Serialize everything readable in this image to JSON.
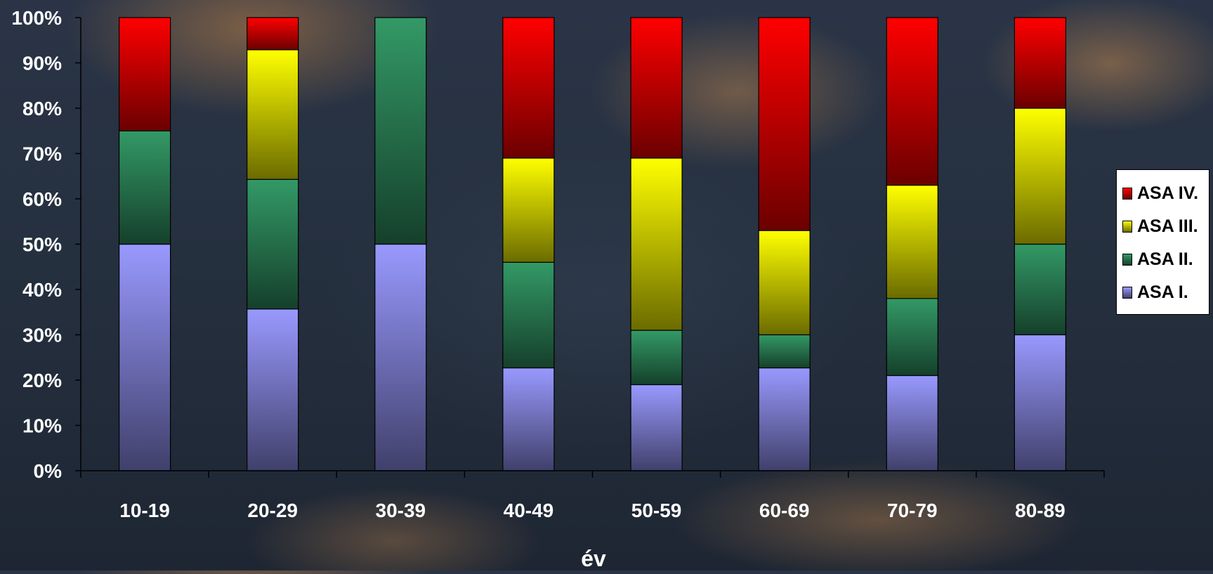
{
  "chart_data": {
    "type": "bar",
    "stacked": "percent",
    "categories": [
      "10-19",
      "20-29",
      "30-39",
      "40-49",
      "50-59",
      "60-69",
      "70-79",
      "80-89"
    ],
    "series": [
      {
        "name": "ASA I.",
        "color": "#9999ff",
        "values": [
          50,
          35.7,
          50,
          22.7,
          19,
          22.7,
          21,
          30
        ]
      },
      {
        "name": "ASA II.",
        "color": "#339966",
        "values": [
          25,
          28.6,
          50,
          23.3,
          12,
          7.3,
          17,
          20
        ]
      },
      {
        "name": "ASA III.",
        "color": "#ffff00",
        "values": [
          0,
          28.6,
          0,
          23,
          38,
          23,
          25,
          30
        ]
      },
      {
        "name": "ASA IV.",
        "color": "#ff0000",
        "values": [
          25,
          7.1,
          0,
          31,
          31,
          47,
          37,
          20
        ]
      }
    ],
    "xlabel": "év",
    "ylabel": "",
    "ylim": [
      0,
      100
    ],
    "yticks": [
      "0%",
      "10%",
      "20%",
      "30%",
      "40%",
      "50%",
      "60%",
      "70%",
      "80%",
      "90%",
      "100%"
    ],
    "legend_position": "right",
    "legend_order": [
      "ASA IV.",
      "ASA III.",
      "ASA II.",
      "ASA I."
    ],
    "grid": false
  }
}
